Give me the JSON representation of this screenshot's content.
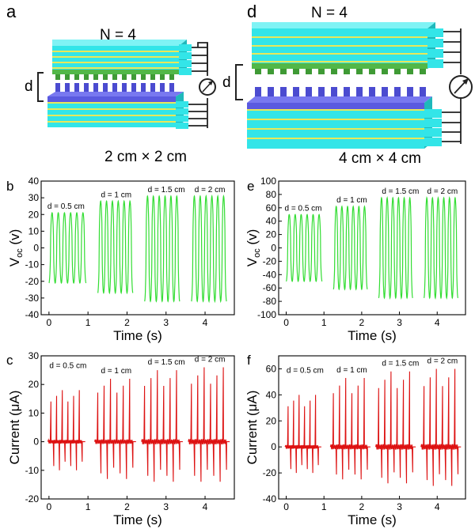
{
  "figure": {
    "panel_labels": [
      "a",
      "b",
      "c",
      "d",
      "e",
      "f"
    ]
  },
  "device_a": {
    "n_label": "N = 4",
    "size_label": "2 cm × 2 cm",
    "gap_label": "d",
    "colors": {
      "stack": "#33e5e8",
      "electrode": "#e8e85a",
      "top_plate": "#52b848",
      "bottom_plate": "#5a5ae0",
      "wire": "#222222"
    }
  },
  "device_d": {
    "n_label": "N = 4",
    "size_label": "4 cm × 4 cm",
    "gap_label": "d",
    "colors": {
      "stack": "#33e5e8",
      "electrode": "#e8e85a",
      "top_plate": "#52b848",
      "bottom_plate": "#5a5ae0",
      "wire": "#222222"
    }
  },
  "chart_data": [
    {
      "panel": "b",
      "type": "line",
      "xlabel": "Time (s)",
      "ylabel_main": "V",
      "ylabel_sub": "oc",
      "ylabel_unit": " (v)",
      "xlim": [
        -0.2,
        4.75
      ],
      "ylim": [
        -40,
        40
      ],
      "xticks": [
        0,
        1,
        2,
        3,
        4
      ],
      "yticks": [
        -40,
        -30,
        -20,
        -10,
        0,
        10,
        20,
        30,
        40
      ],
      "color": "#33dd33",
      "waveform": "sine",
      "series": [
        {
          "label": "d = 0.5 cm",
          "t_start": 0.0,
          "t_end": 0.95,
          "cycles": 6,
          "ymax": 21,
          "ymin": -21
        },
        {
          "label": "d = 1 cm",
          "t_start": 1.25,
          "t_end": 2.15,
          "cycles": 6,
          "ymax": 28,
          "ymin": -27
        },
        {
          "label": "d = 1.5 cm",
          "t_start": 2.45,
          "t_end": 3.35,
          "cycles": 6,
          "ymax": 31,
          "ymin": -32
        },
        {
          "label": "d = 2 cm",
          "t_start": 3.65,
          "t_end": 4.55,
          "cycles": 6,
          "ymax": 31,
          "ymin": -32
        }
      ]
    },
    {
      "panel": "e",
      "type": "line",
      "xlabel": "Time (s)",
      "ylabel_main": "V",
      "ylabel_sub": "oc",
      "ylabel_unit": " (v)",
      "xlim": [
        -0.2,
        4.75
      ],
      "ylim": [
        -100,
        100
      ],
      "xticks": [
        0,
        1,
        2,
        3,
        4
      ],
      "yticks": [
        -100,
        -80,
        -60,
        -40,
        -20,
        0,
        20,
        40,
        60,
        80,
        100
      ],
      "color": "#33dd33",
      "waveform": "sine",
      "series": [
        {
          "label": "d = 0.5 cm",
          "t_start": 0.0,
          "t_end": 0.95,
          "cycles": 6,
          "ymax": 50,
          "ymin": -50
        },
        {
          "label": "d = 1 cm",
          "t_start": 1.25,
          "t_end": 2.15,
          "cycles": 6,
          "ymax": 62,
          "ymin": -62
        },
        {
          "label": "d = 1.5 cm",
          "t_start": 2.45,
          "t_end": 3.35,
          "cycles": 6,
          "ymax": 75,
          "ymin": -75
        },
        {
          "label": "d = 2 cm",
          "t_start": 3.65,
          "t_end": 4.55,
          "cycles": 6,
          "ymax": 75,
          "ymin": -75
        }
      ]
    },
    {
      "panel": "c",
      "type": "line",
      "xlabel": "Time (s)",
      "ylabel_main": "Current (",
      "ylabel_greek": "μ",
      "ylabel_unit": "A)",
      "xlim": [
        -0.2,
        4.75
      ],
      "ylim": [
        -20,
        30
      ],
      "xticks": [
        0,
        1,
        2,
        3,
        4
      ],
      "yticks": [
        -20,
        -10,
        0,
        10,
        20,
        30
      ],
      "color": "#dd1111",
      "waveform": "spikes",
      "series": [
        {
          "label": "d = 0.5 cm",
          "t_start": 0.05,
          "t_end": 0.85,
          "cycles": 6,
          "ymax": 18,
          "ymin": -10
        },
        {
          "label": "d = 1 cm",
          "t_start": 1.25,
          "t_end": 2.15,
          "cycles": 6,
          "ymax": 22,
          "ymin": -13
        },
        {
          "label": "d = 1.5 cm",
          "t_start": 2.45,
          "t_end": 3.35,
          "cycles": 6,
          "ymax": 25,
          "ymin": -14
        },
        {
          "label": "d = 2 cm",
          "t_start": 3.65,
          "t_end": 4.55,
          "cycles": 6,
          "ymax": 26,
          "ymin": -14
        }
      ]
    },
    {
      "panel": "f",
      "type": "line",
      "xlabel": "Time (s)",
      "ylabel_main": "Current (",
      "ylabel_greek": "μ",
      "ylabel_unit": "A)",
      "xlim": [
        -0.2,
        4.75
      ],
      "ylim": [
        -40,
        70
      ],
      "xticks": [
        0,
        1,
        2,
        3,
        4
      ],
      "yticks": [
        -40,
        -20,
        0,
        20,
        40,
        60
      ],
      "color": "#dd1111",
      "waveform": "spikes",
      "series": [
        {
          "label": "d = 0.5 cm",
          "t_start": 0.05,
          "t_end": 0.85,
          "cycles": 6,
          "ymax": 40,
          "ymin": -20
        },
        {
          "label": "d = 1 cm",
          "t_start": 1.25,
          "t_end": 2.15,
          "cycles": 6,
          "ymax": 53,
          "ymin": -25
        },
        {
          "label": "d = 1.5 cm",
          "t_start": 2.45,
          "t_end": 3.35,
          "cycles": 6,
          "ymax": 58,
          "ymin": -28
        },
        {
          "label": "d = 2 cm",
          "t_start": 3.65,
          "t_end": 4.55,
          "cycles": 6,
          "ymax": 60,
          "ymin": -30
        }
      ]
    }
  ]
}
